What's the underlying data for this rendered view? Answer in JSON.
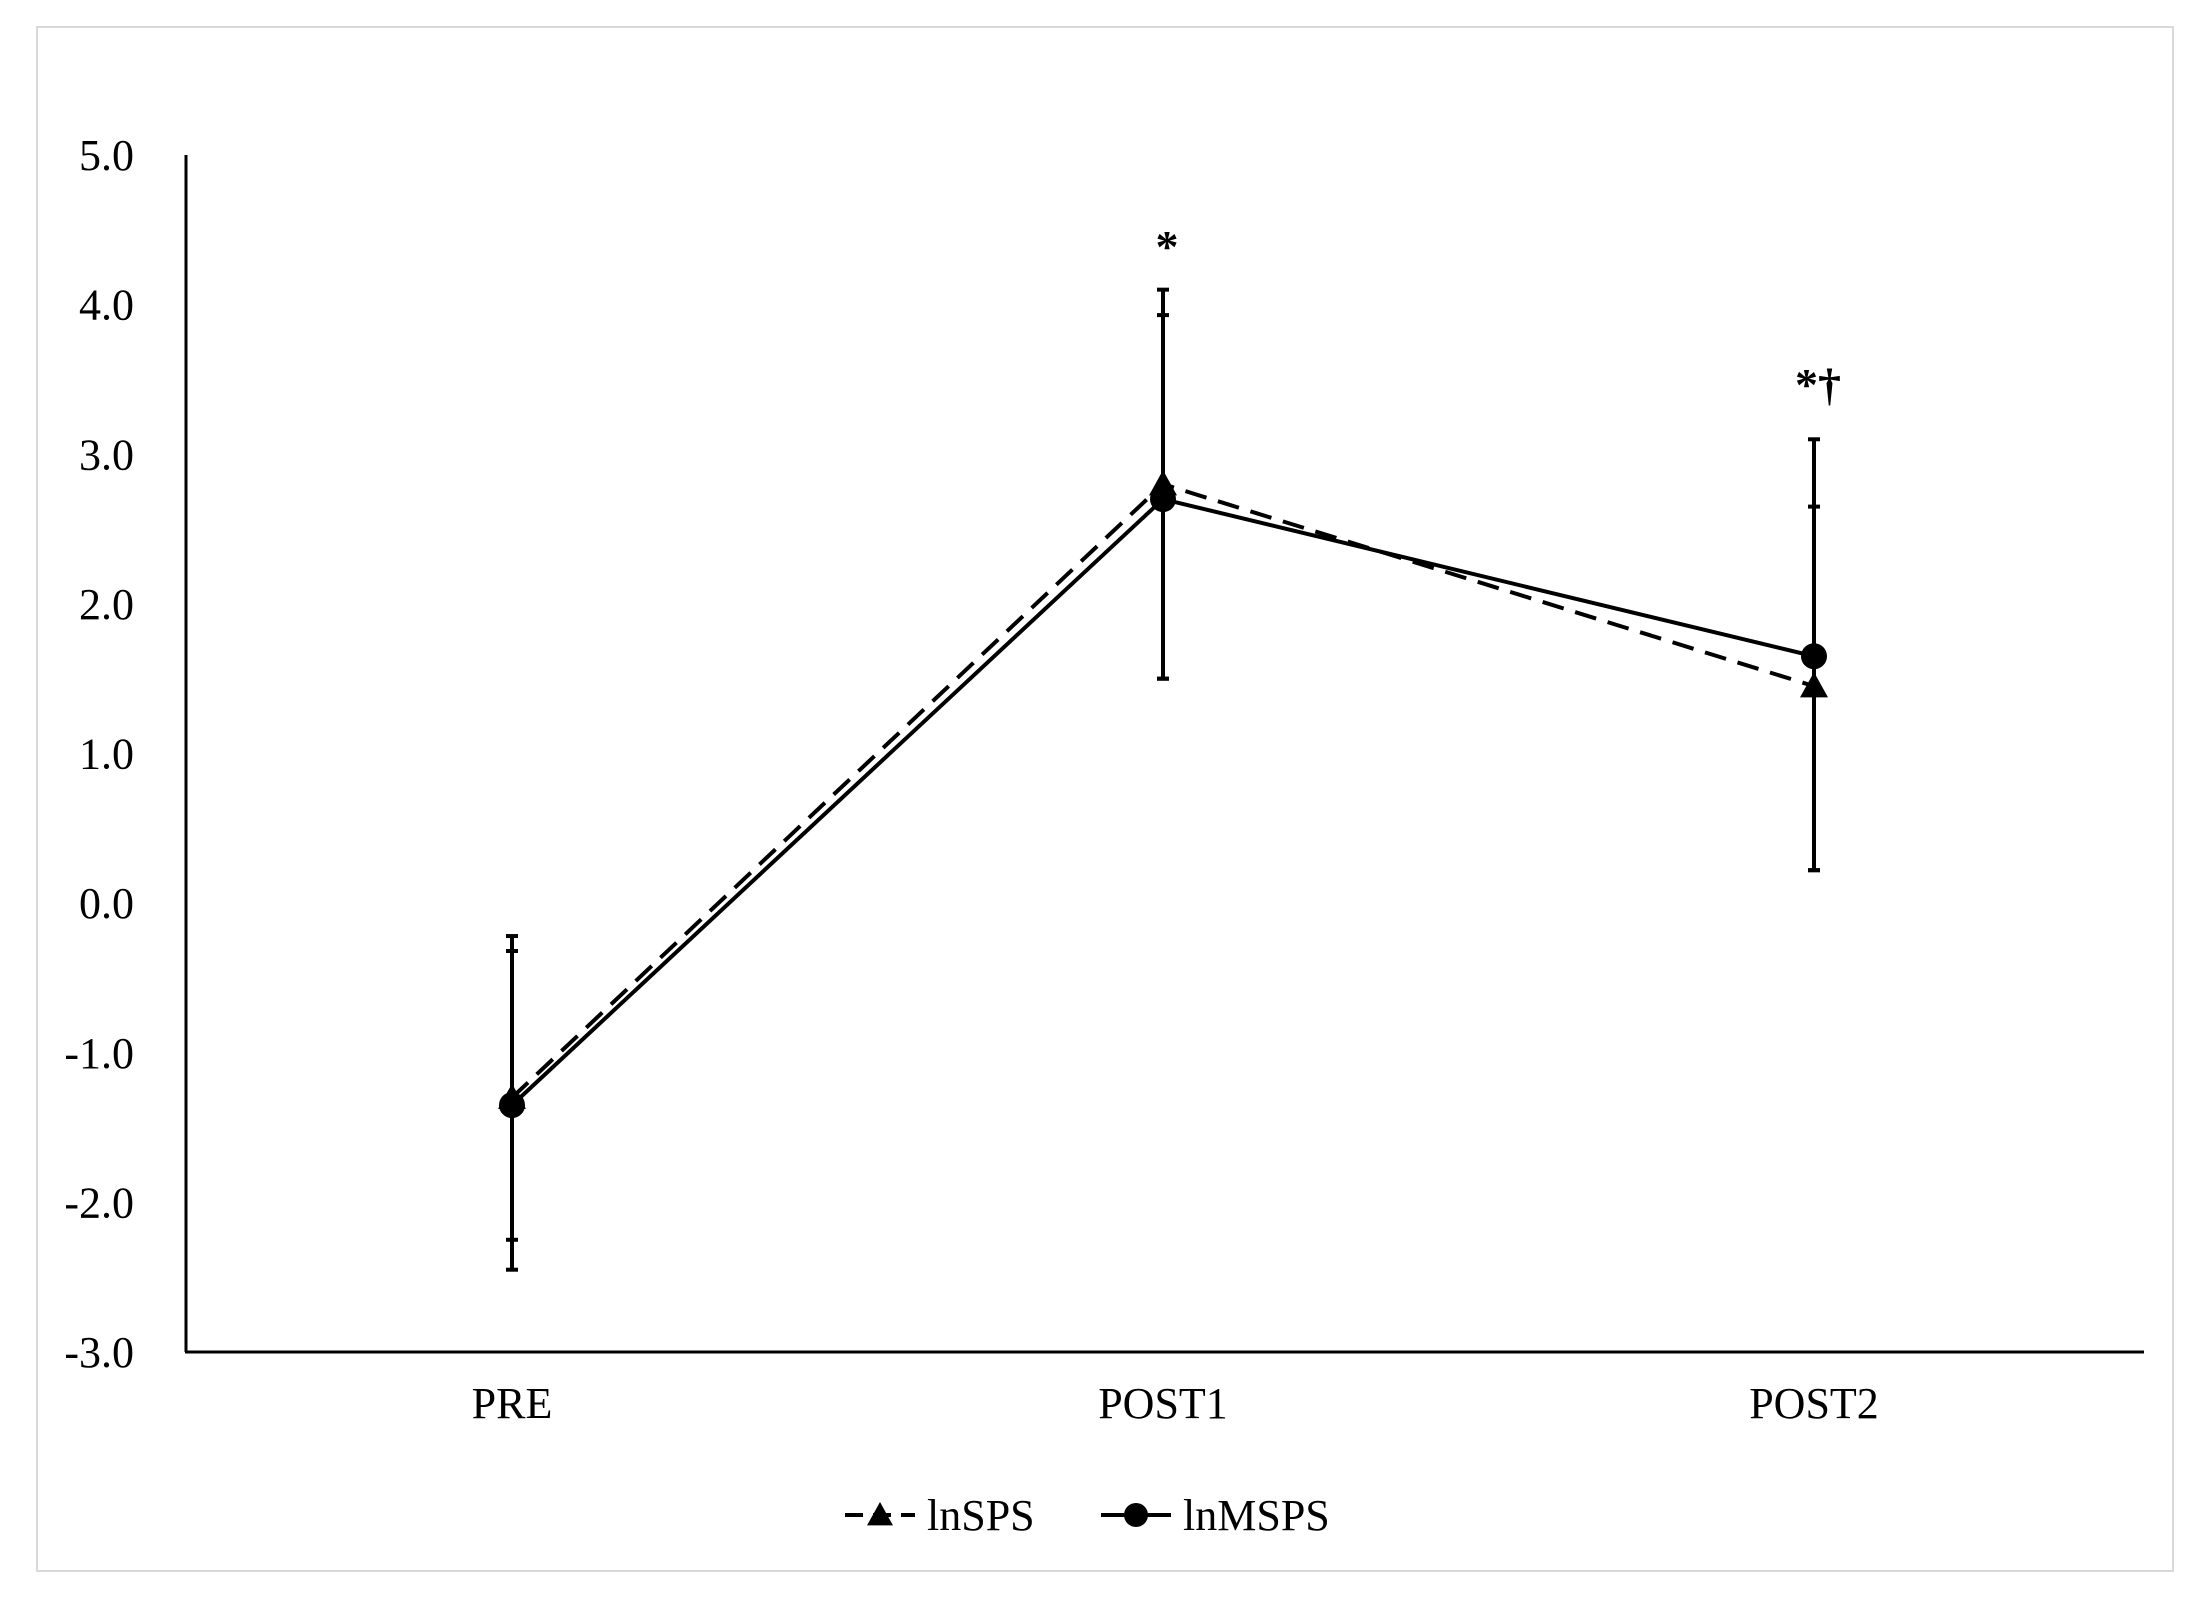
{
  "chart_data": {
    "type": "line",
    "title": "",
    "xlabel": "",
    "ylabel": "",
    "categories": [
      "PRE",
      "POST1",
      "POST2"
    ],
    "ylim": [
      -3.0,
      5.0
    ],
    "yticks": [
      "5.0",
      "4.0",
      "3.0",
      "2.0",
      "1.0",
      "0.0",
      "-1.0",
      "-2.0",
      "-3.0"
    ],
    "ytick_values": [
      5,
      4,
      3,
      2,
      1,
      0,
      -1,
      -2,
      -3
    ],
    "grid": false,
    "legend_placement": "bottom-center",
    "series": [
      {
        "name": "lnSPS",
        "line_style": "dashed",
        "marker": "triangle",
        "values": [
          -1.3,
          2.8,
          1.45
        ],
        "error_low": [
          -2.25,
          1.5,
          0.22
        ],
        "error_high": [
          -0.32,
          4.1,
          2.65
        ]
      },
      {
        "name": "lnMSPS",
        "line_style": "solid",
        "marker": "circle",
        "values": [
          -1.35,
          2.7,
          1.65
        ],
        "error_low": [
          -2.45,
          1.5,
          0.22
        ],
        "error_high": [
          -0.22,
          3.93,
          3.1
        ]
      }
    ],
    "annotations": [
      {
        "category": "POST1",
        "text": "*"
      },
      {
        "category": "POST2",
        "text": "*†"
      }
    ],
    "colors": {
      "line": "#000000",
      "frame": "#d9d9d9",
      "background": "#ffffff"
    }
  }
}
